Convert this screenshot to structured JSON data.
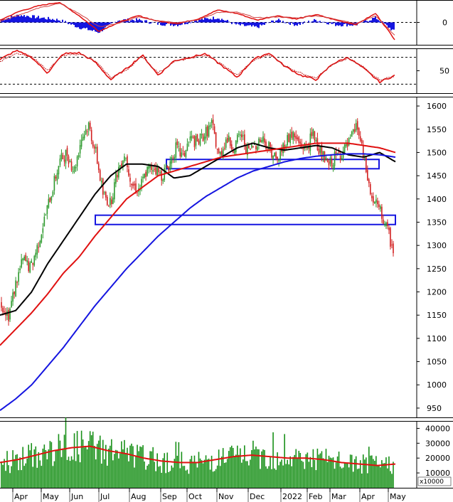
{
  "colors": {
    "background": "#ffffff",
    "up_candle": "#2e9a2e",
    "down_candle": "#d22020",
    "ma_short": "#000000",
    "ma_mid": "#e01010",
    "ma_long": "#1515e0",
    "volume_bar": "#189018",
    "volume_ma": "#e01010",
    "macd_hist": "#1515e0",
    "zone_box": "#1515e0",
    "grid_dashed": "#000000",
    "panel_border": "#000000"
  },
  "chart_data": [
    {
      "type": "line",
      "panel": "macd",
      "ylabel": "",
      "yticks": [
        "0"
      ],
      "ylim": [
        -1,
        1
      ],
      "x": [
        0,
        5,
        10,
        15,
        20,
        25,
        30,
        35,
        40,
        45,
        50,
        55,
        60,
        65,
        70,
        75,
        80,
        85,
        90,
        95,
        100
      ],
      "series": [
        {
          "values": [
            0.1,
            0.5,
            0.75,
            0.9,
            0.3,
            -0.4,
            0.0,
            0.3,
            0.05,
            -0.05,
            0.15,
            0.55,
            0.4,
            0.1,
            0.3,
            0.15,
            0.35,
            0.1,
            -0.1,
            0.4,
            -0.8
          ]
        },
        {
          "values": [
            0.05,
            0.35,
            0.65,
            0.85,
            0.4,
            -0.2,
            -0.05,
            0.25,
            0.08,
            0.0,
            0.1,
            0.45,
            0.45,
            0.2,
            0.25,
            0.2,
            0.3,
            0.15,
            -0.05,
            0.3,
            -0.6
          ]
        }
      ]
    },
    {
      "type": "line",
      "panel": "oscillator",
      "yticks": [
        "50"
      ],
      "ylim": [
        0,
        100
      ],
      "x": [
        0,
        4,
        8,
        12,
        16,
        20,
        24,
        28,
        32,
        36,
        40,
        44,
        48,
        52,
        56,
        60,
        64,
        68,
        72,
        76,
        80,
        84,
        88,
        92,
        96,
        100
      ],
      "series": [
        {
          "values": [
            75,
            95,
            80,
            45,
            88,
            90,
            70,
            30,
            55,
            85,
            40,
            72,
            80,
            88,
            62,
            35,
            75,
            90,
            60,
            40,
            30,
            65,
            80,
            55,
            25,
            40
          ]
        },
        {
          "values": [
            70,
            90,
            82,
            50,
            85,
            88,
            72,
            35,
            52,
            82,
            45,
            70,
            78,
            85,
            65,
            40,
            72,
            87,
            62,
            45,
            35,
            62,
            78,
            58,
            30,
            38
          ]
        }
      ]
    },
    {
      "type": "candlestick",
      "panel": "price",
      "yticks": [
        "1600",
        "1550",
        "1500",
        "1450",
        "1400",
        "1350",
        "1300",
        "1250",
        "1200",
        "1150",
        "1100",
        "1050",
        "1000",
        "950"
      ],
      "ylim": [
        930,
        1620
      ],
      "x_categories": [
        "Apr",
        "May",
        "Jun",
        "Jul",
        "Aug",
        "Sep",
        "Oct",
        "Nov",
        "Dec",
        "2022",
        "Feb",
        "Mar",
        "Apr",
        "May"
      ],
      "close_path": [
        [
          "Apr",
          1175
        ],
        [
          "",
          1150
        ],
        [
          "",
          1220
        ],
        [
          "",
          1270
        ],
        [
          "May",
          1250
        ],
        [
          "",
          1300
        ],
        [
          "",
          1360
        ],
        [
          "",
          1420
        ],
        [
          "Jun",
          1480
        ],
        [
          "",
          1500
        ],
        [
          "",
          1460
        ],
        [
          "",
          1530
        ],
        [
          "Jul",
          1560
        ],
        [
          "",
          1500
        ],
        [
          "",
          1410
        ],
        [
          "",
          1390
        ],
        [
          "Aug",
          1460
        ],
        [
          "",
          1500
        ],
        [
          "",
          1430
        ],
        [
          "",
          1420
        ],
        [
          "Sep",
          1460
        ],
        [
          "",
          1470
        ],
        [
          "",
          1450
        ],
        [
          "",
          1470
        ],
        [
          "Oct",
          1510
        ],
        [
          "",
          1490
        ],
        [
          "",
          1530
        ],
        [
          "",
          1520
        ],
        [
          "Nov",
          1540
        ],
        [
          "",
          1560
        ],
        [
          "",
          1490
        ],
        [
          "",
          1530
        ],
        [
          "Dec",
          1510
        ],
        [
          "",
          1540
        ],
        [
          "",
          1500
        ],
        [
          "",
          1520
        ],
        [
          "2022",
          1530
        ],
        [
          "",
          1510
        ],
        [
          "",
          1480
        ],
        [
          "",
          1520
        ],
        [
          "Feb",
          1540
        ],
        [
          "",
          1520
        ],
        [
          "",
          1510
        ],
        [
          "",
          1540
        ],
        [
          "Mar",
          1500
        ],
        [
          "",
          1470
        ],
        [
          "",
          1490
        ],
        [
          "",
          1500
        ],
        [
          "Apr",
          1520
        ],
        [
          "",
          1560
        ],
        [
          "",
          1480
        ],
        [
          "",
          1400
        ],
        [
          "",
          1380
        ],
        [
          "May",
          1340
        ],
        [
          "",
          1290
        ]
      ],
      "moving_averages": [
        {
          "key": "ma_short",
          "values": [
            1150,
            1160,
            1200,
            1260,
            1310,
            1360,
            1410,
            1450,
            1475,
            1475,
            1470,
            1445,
            1450,
            1470,
            1490,
            1510,
            1520,
            1510,
            1505,
            1510,
            1515,
            1510,
            1495,
            1490,
            1500,
            1480
          ]
        },
        {
          "key": "ma_mid",
          "values": [
            1085,
            1120,
            1155,
            1195,
            1240,
            1275,
            1320,
            1360,
            1400,
            1425,
            1450,
            1460,
            1470,
            1480,
            1490,
            1495,
            1500,
            1505,
            1510,
            1515,
            1520,
            1520,
            1520,
            1515,
            1510,
            1500
          ]
        },
        {
          "key": "ma_long",
          "values": [
            945,
            970,
            1000,
            1040,
            1080,
            1125,
            1170,
            1210,
            1250,
            1285,
            1320,
            1350,
            1380,
            1405,
            1425,
            1445,
            1460,
            1470,
            1480,
            1487,
            1492,
            1495,
            1497,
            1497,
            1495,
            1490
          ]
        }
      ],
      "zones": [
        {
          "name": "upper-resistance-zone",
          "from": "Sep",
          "to": "Apr",
          "low": 1465,
          "high": 1485
        },
        {
          "name": "support-zone",
          "from": "Jul",
          "to": "May",
          "low": 1345,
          "high": 1365
        }
      ]
    },
    {
      "type": "bar",
      "panel": "volume",
      "yticks": [
        "40000",
        "30000",
        "20000",
        "10000"
      ],
      "unit_label": "x10000",
      "ylim": [
        0,
        45000
      ],
      "x_categories": [
        "Apr",
        "May",
        "Jun",
        "Jul",
        "Aug",
        "Sep",
        "Oct",
        "Nov",
        "Dec",
        "2022",
        "Feb",
        "Mar",
        "Apr",
        "May"
      ],
      "volume_ma": [
        17000,
        19000,
        22000,
        25000,
        27000,
        28000,
        25000,
        23000,
        20000,
        18000,
        17000,
        17000,
        19000,
        21000,
        22000,
        21000,
        20000,
        20000,
        19000,
        17000,
        16000,
        15000,
        16000
      ]
    }
  ],
  "x_axis": {
    "labels": [
      "Apr",
      "May",
      "Jun",
      "Jul",
      "Aug",
      "Sep",
      "Oct",
      "Nov",
      "Dec",
      "2022",
      "Feb",
      "Mar",
      "Apr",
      "May"
    ]
  }
}
